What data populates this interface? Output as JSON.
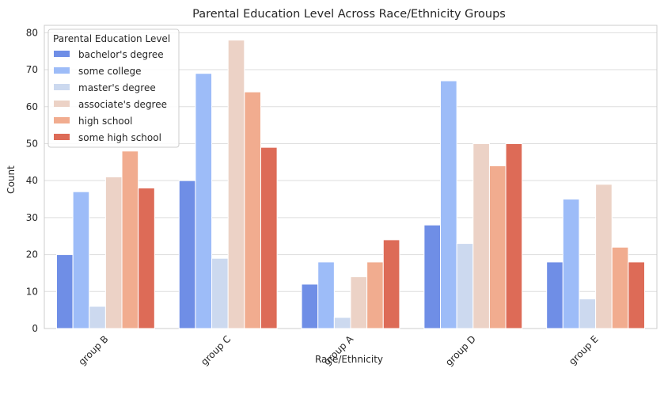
{
  "chart_data": {
    "type": "bar",
    "title": "Parental Education Level Across Race/Ethnicity Groups",
    "xlabel": "Race/Ethnicity",
    "ylabel": "Count",
    "ylim": [
      0,
      82
    ],
    "yticks": [
      0,
      10,
      20,
      30,
      40,
      50,
      60,
      70,
      80
    ],
    "grid": true,
    "legend": {
      "title": "Parental Education Level",
      "placement": "top-left"
    },
    "categories": [
      "group B",
      "group C",
      "group A",
      "group D",
      "group E"
    ],
    "series": [
      {
        "name": "bachelor's degree",
        "color": "#6f8ee6",
        "values": [
          20,
          40,
          12,
          28,
          18
        ]
      },
      {
        "name": "some college",
        "color": "#9dbcf8",
        "values": [
          37,
          69,
          18,
          67,
          35
        ]
      },
      {
        "name": "master's degree",
        "color": "#ccd9ef",
        "values": [
          6,
          19,
          3,
          23,
          8
        ]
      },
      {
        "name": "associate's degree",
        "color": "#ecd2c6",
        "values": [
          41,
          78,
          14,
          50,
          39
        ]
      },
      {
        "name": "high school",
        "color": "#f1ac8f",
        "values": [
          48,
          64,
          18,
          44,
          22
        ]
      },
      {
        "name": "some high school",
        "color": "#dd6b57",
        "values": [
          38,
          49,
          24,
          50,
          18
        ]
      }
    ]
  }
}
